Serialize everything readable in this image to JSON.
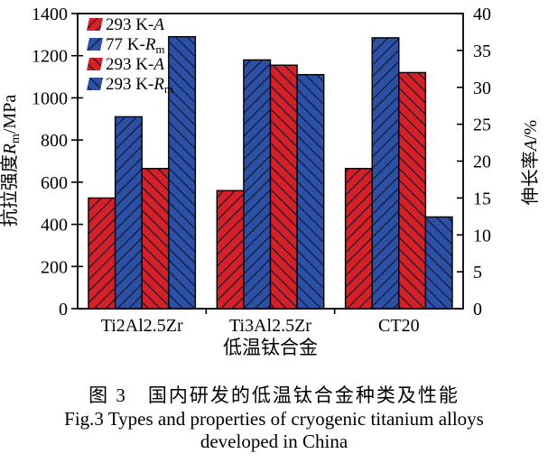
{
  "figure": {
    "caption_cn": "图 3　国内研发的低温钛合金种类及性能",
    "caption_en_line1": "Fig.3 Types and properties of cryogenic titanium alloys",
    "caption_en_line2": "developed in China"
  },
  "colors": {
    "red": "#d42128",
    "blue": "#2b50a4",
    "hatch_line": "#141432",
    "axis": "#000000",
    "background": "#ffffff"
  },
  "chart_data": {
    "type": "bar",
    "categories": [
      "Ti2Al2.5Zr",
      "Ti3Al2.5Zr",
      "CT20"
    ],
    "xlabel": "低温钛合金",
    "grid": false,
    "legend_position": "top-left",
    "left_axis": {
      "label_cn": "抗拉强度",
      "symbol": "R",
      "symbol_sub": "m",
      "unit": "/MPa",
      "min": 0,
      "max": 1400,
      "step": 200
    },
    "right_axis": {
      "label_cn": "伸长率",
      "symbol": "A",
      "symbol_sub": "",
      "unit": "/%",
      "min": 0,
      "max": 40,
      "step": 5
    },
    "series": [
      {
        "label": "293 K-A",
        "legend_prefix": "293 K-",
        "symbol": "A",
        "symbol_sub": "",
        "axis": "right",
        "color": "#d42128",
        "hatch": "/",
        "values": [
          15,
          16,
          19
        ]
      },
      {
        "label": "77 K-Rm",
        "legend_prefix": "77 K-",
        "symbol": "R",
        "symbol_sub": "m",
        "axis": "left",
        "color": "#2b50a4",
        "hatch": "/",
        "values": [
          910,
          1180,
          1285
        ]
      },
      {
        "label": "293 K-A",
        "legend_prefix": "293 K-",
        "symbol": "A",
        "symbol_sub": "",
        "axis": "right",
        "color": "#d42128",
        "hatch": "\\",
        "values": [
          19,
          33,
          32
        ]
      },
      {
        "label": "293 K-Rm",
        "legend_prefix": "293 K-",
        "symbol": "R",
        "symbol_sub": "m",
        "axis": "left",
        "color": "#2b50a4",
        "hatch": "\\",
        "values": [
          1290,
          1110,
          435
        ]
      }
    ]
  }
}
